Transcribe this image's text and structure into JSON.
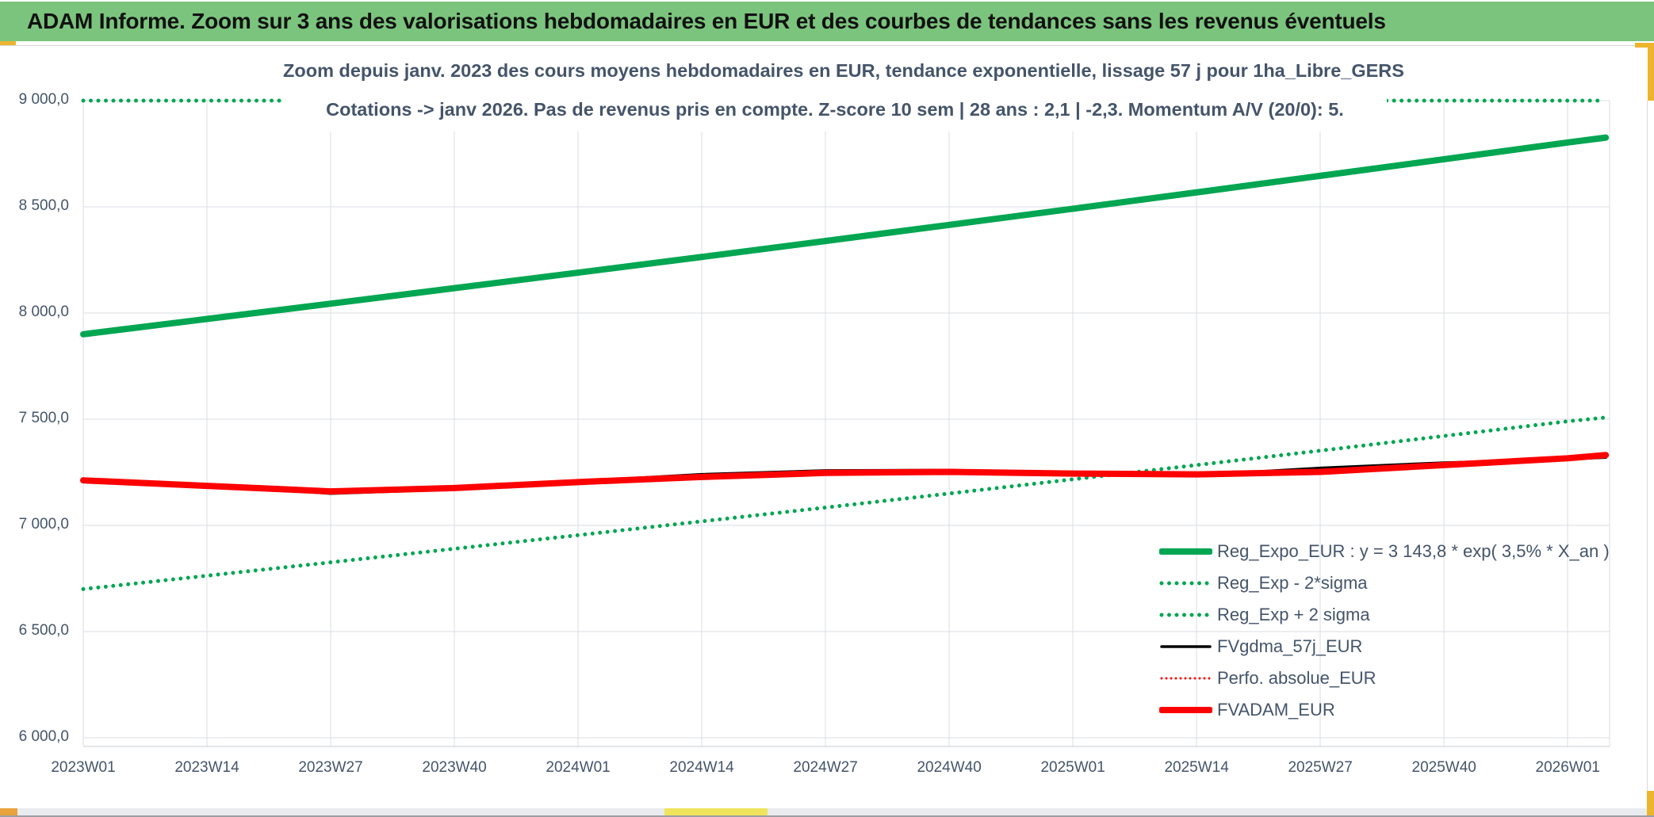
{
  "header": {
    "title": "ADAM Informe. Zoom sur 3 ans des valorisations hebdomadaires en EUR et des courbes de tendances sans les revenus éventuels"
  },
  "chart_data": {
    "type": "line",
    "title_lines": [
      "Zoom depuis janv. 2023 des cours moyens hebdomadaires en EUR, tendance exponentielle, lissage 57 j pour 1ha_Libre_GERS",
      "Cotations -> janv 2026. Pas de revenus pris en compte. Z-score 10 sem | 28 ans : 2,1 | -2,3. Momentum A/V (20/0): 5."
    ],
    "x_axis": {
      "labels": [
        "2023W01",
        "2023W14",
        "2023W27",
        "2023W40",
        "2024W01",
        "2024W14",
        "2024W27",
        "2024W40",
        "2025W01",
        "2025W14",
        "2025W27",
        "2025W40",
        "2026W01"
      ],
      "week_index": [
        0,
        13,
        26,
        39,
        52,
        65,
        78,
        91,
        104,
        117,
        130,
        143,
        156
      ],
      "right_edge_week": 160.4
    },
    "y_axis": {
      "min": 6000,
      "max": 9000,
      "step": 500,
      "labels_top_to_bottom": [
        "9 000,0",
        "8 500,0",
        "8 000,0",
        "7 500,0",
        "7 000,0",
        "6 500,0",
        "6 000,0"
      ]
    },
    "grid": true,
    "legend_position": "inside-bottom-right",
    "series": [
      {
        "name": "Reg_Expo_EUR : y = 3 143,8 * exp( 3,5% *  X_an )",
        "color": "#00a651",
        "style": "solid",
        "width": 8,
        "z": 3,
        "x": [
          0,
          13,
          26,
          39,
          52,
          65,
          78,
          91,
          104,
          117,
          130,
          143,
          156,
          160
        ],
        "values": [
          7900,
          7972,
          8044,
          8117,
          8190,
          8264,
          8339,
          8415,
          8491,
          8568,
          8646,
          8724,
          8803,
          8826
        ]
      },
      {
        "name": "Reg_Exp - 2*sigma",
        "color": "#00a651",
        "style": "dots",
        "width": 5,
        "z": 2,
        "x": [
          0,
          13,
          26,
          39,
          52,
          65,
          78,
          91,
          104,
          117,
          130,
          143,
          156,
          160
        ],
        "values": [
          6700,
          6763,
          6826,
          6890,
          6954,
          7019,
          7084,
          7150,
          7217,
          7284,
          7352,
          7421,
          7490,
          7508
        ]
      },
      {
        "name": "Reg_Exp + 2 sigma",
        "color": "#00a651",
        "style": "dots",
        "width": 5,
        "z": 1,
        "clipped_at_axis_max": true,
        "x": [
          0,
          159.7
        ],
        "values": [
          9000,
          9000
        ]
      },
      {
        "name": "FVgdma_57j_EUR",
        "color": "#000000",
        "style": "solid",
        "width": 3.5,
        "z": 5,
        "x": [
          0,
          13,
          26,
          39,
          52,
          65,
          78,
          91,
          104,
          117,
          130,
          143,
          156,
          160
        ],
        "values": [
          7218,
          7192,
          7150,
          7170,
          7208,
          7240,
          7258,
          7260,
          7246,
          7236,
          7270,
          7295,
          7312,
          7320
        ]
      },
      {
        "name": "Perfo. absolue_EUR",
        "color": "#ff0000",
        "style": "fine-dots",
        "width": 3,
        "z": 4,
        "x": [
          0,
          13,
          26,
          39,
          52,
          65,
          78,
          91,
          104,
          117,
          130,
          143,
          156,
          160
        ],
        "values": [
          7212,
          7186,
          7160,
          7176,
          7204,
          7228,
          7247,
          7252,
          7244,
          7240,
          7252,
          7284,
          7316,
          7331
        ]
      },
      {
        "name": "FVADAM_EUR",
        "color": "#ff0000",
        "style": "solid",
        "width": 8,
        "z": 6,
        "x": [
          0,
          13,
          26,
          39,
          52,
          65,
          78,
          91,
          104,
          117,
          130,
          143,
          156,
          160
        ],
        "values": [
          7212,
          7186,
          7160,
          7176,
          7204,
          7228,
          7247,
          7252,
          7244,
          7240,
          7252,
          7284,
          7316,
          7331
        ]
      }
    ]
  },
  "decorations": {
    "title_bar_color": "#7bc47d",
    "accent_gold": "#edb52e",
    "accent_amber": "#e8a33c",
    "accent_yellow": "#efe45c",
    "gridline_color": "#d9dde3",
    "axis_text_color": "#44546a"
  }
}
